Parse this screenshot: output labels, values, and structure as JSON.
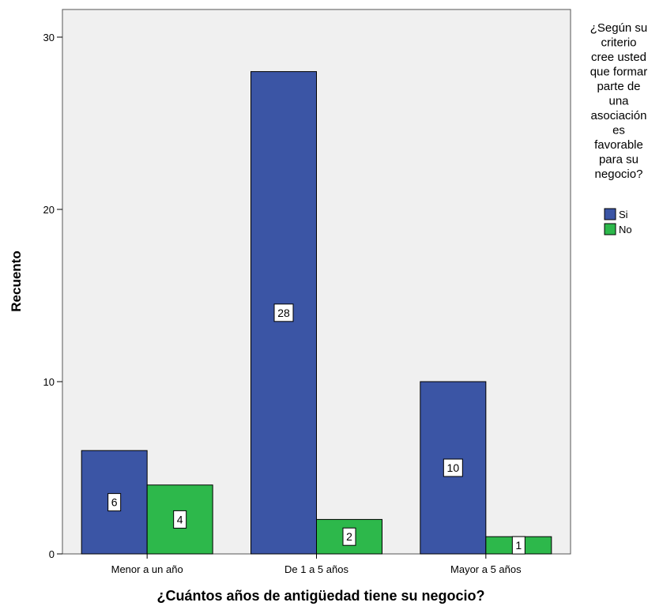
{
  "chart_data": {
    "type": "bar",
    "categories": [
      "Menor a un año",
      "De 1 a 5 años",
      "Mayor a 5 años"
    ],
    "series": [
      {
        "name": "Si",
        "values": [
          6,
          28,
          10
        ],
        "color": "#3B55A5"
      },
      {
        "name": "No",
        "values": [
          4,
          2,
          1
        ],
        "color": "#2DB84B"
      }
    ],
    "xlabel": "¿Cuántos años de antigüedad tiene su negocio?",
    "ylabel": "Recuento",
    "ylim": [
      0,
      30
    ],
    "yticks": [
      "0",
      "10",
      "20",
      "30"
    ],
    "legend_title_lines": [
      "¿Según su",
      "criterio",
      "cree usted",
      "que formar",
      "parte de",
      "una",
      "asociación",
      "es",
      "favorable",
      "para su",
      "negocio?"
    ],
    "legend_position": "right",
    "plot_background": "#F0F0F0",
    "grid": false,
    "data_labels": true
  }
}
